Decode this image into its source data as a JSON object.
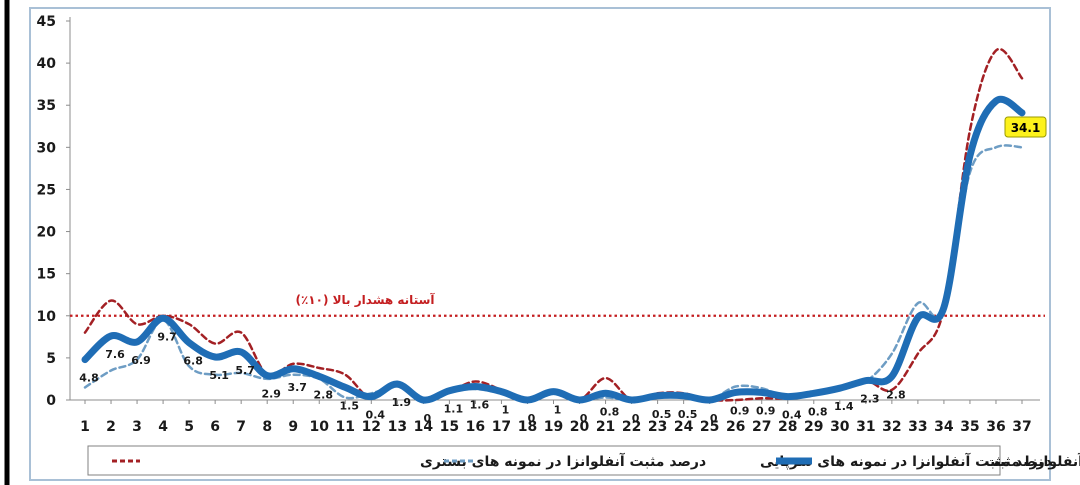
{
  "chart_data": {
    "type": "line",
    "x": [
      1,
      2,
      3,
      4,
      5,
      6,
      7,
      8,
      9,
      10,
      11,
      12,
      13,
      14,
      15,
      16,
      17,
      18,
      19,
      20,
      21,
      22,
      23,
      24,
      25,
      26,
      27,
      28,
      29,
      30,
      31,
      32,
      33,
      34,
      35,
      36,
      37
    ],
    "xlim": [
      1,
      37
    ],
    "ylim": [
      0,
      45
    ],
    "yticks": [
      "0",
      "5",
      "10",
      "15",
      "20",
      "25",
      "30",
      "35",
      "40",
      "45"
    ],
    "grid": false,
    "legend_position": "bottom",
    "series": [
      {
        "name": "میانگین آنفلوانزا مثبت",
        "style": "solid-thick",
        "color": "#1f6db5",
        "values": [
          4.8,
          7.6,
          6.9,
          9.7,
          6.8,
          5.1,
          5.7,
          2.9,
          3.7,
          2.8,
          1.5,
          0.4,
          1.9,
          0,
          1.1,
          1.6,
          1,
          0,
          1,
          0,
          0.8,
          0,
          0.5,
          0.5,
          0,
          0.9,
          0.9,
          0.4,
          0.8,
          1.4,
          2.3,
          2.8,
          9.8,
          11,
          29,
          35.5,
          34.1
        ]
      },
      {
        "name": "درصد مثبت آنفلوانزا در نمونه های سرپایی",
        "style": "dashed",
        "color": "#6e9dc4",
        "values": [
          1.5,
          3.5,
          4.8,
          9.5,
          4,
          3,
          3.2,
          2.5,
          3,
          2.5,
          0.3,
          0.8,
          1.6,
          0,
          1,
          1.3,
          0.8,
          0,
          0.8,
          0,
          0.3,
          0,
          0.6,
          0.4,
          0,
          1.6,
          1.4,
          0.3,
          0.8,
          1.4,
          2.2,
          5.5,
          11.5,
          10.5,
          27,
          30,
          30
        ]
      },
      {
        "name": "درصد مثبت آنفلوانزا در نمونه های بستری",
        "style": "dashed",
        "color": "#a32024",
        "values": [
          8,
          11.8,
          9,
          10,
          9,
          6.7,
          8,
          3,
          4.3,
          3.8,
          3,
          0.2,
          2,
          0,
          1,
          2.2,
          1.2,
          0,
          1,
          0,
          2.6,
          0,
          0.8,
          0.8,
          0,
          0,
          0.2,
          0.2,
          0.6,
          1.2,
          2.3,
          1.2,
          5.5,
          10.8,
          32,
          41.5,
          38.2
        ]
      }
    ],
    "data_labels": [
      "4.8",
      "7.6",
      "6.9",
      "9.7",
      "6.8",
      "5.1",
      "5.7",
      "2.9",
      "3.7",
      "2.8",
      "1.5",
      "0.4",
      "1.9",
      "0",
      "1.1",
      "1.6",
      "1",
      "0",
      "1",
      "0",
      "0.8",
      "0",
      "0.5",
      "0.5",
      "0",
      "0.9",
      "0.9",
      "0.4",
      "0.8",
      "1.4",
      "2.3",
      "2.8",
      "",
      "",
      "",
      "",
      "34.1"
    ],
    "highlight_label": "34.1",
    "threshold": {
      "value": 10,
      "label": "آستانه هشدار بالا (۱۰٪)",
      "color": "#c41e20"
    }
  }
}
